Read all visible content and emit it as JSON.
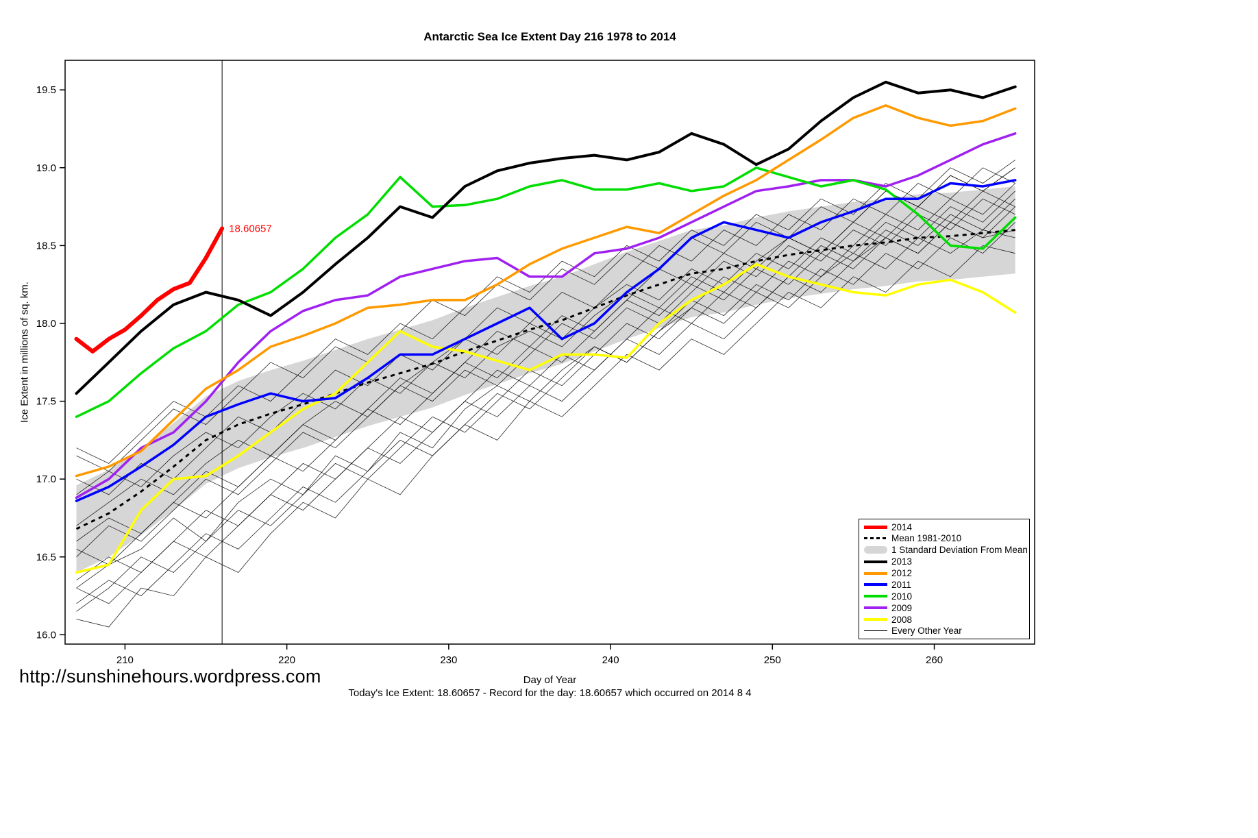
{
  "footer": {
    "url": "http://sunshinehours.wordpress.com",
    "note": "Today's Ice Extent: 18.60657  - Record for the day: 18.60657 which occurred on 2014 8 4"
  },
  "legend": {
    "items": [
      {
        "label": "2014",
        "swatch": "line",
        "color": "#ff0000",
        "width": 5
      },
      {
        "label": "Mean 1981-2010",
        "swatch": "dashed",
        "color": "#000000"
      },
      {
        "label": "1 Standard Deviation From Mean",
        "swatch": "band",
        "color": "#d6d6d6"
      },
      {
        "label": "2013",
        "swatch": "line",
        "color": "#000000",
        "width": 4
      },
      {
        "label": "2012",
        "swatch": "line",
        "color": "#ff9900",
        "width": 4
      },
      {
        "label": "2011",
        "swatch": "line",
        "color": "#0000ff",
        "width": 4
      },
      {
        "label": "2010",
        "swatch": "line",
        "color": "#00dd00",
        "width": 4
      },
      {
        "label": "2009",
        "swatch": "line",
        "color": "#a020f0",
        "width": 4
      },
      {
        "label": "2008",
        "swatch": "line",
        "color": "#ffff00",
        "width": 4
      },
      {
        "label": "Every Other Year",
        "swatch": "line",
        "color": "#000000",
        "width": 1
      }
    ]
  },
  "chart_data": {
    "type": "line",
    "title": "Antarctic Sea Ice Extent Day 216 1978 to 2014",
    "xlabel": "Day of Year",
    "ylabel": "Ice Extent in millions of sq. km.",
    "xlim": [
      206.3,
      266.2
    ],
    "ylim": [
      15.94,
      19.69
    ],
    "xticks": [
      210,
      220,
      230,
      240,
      250,
      260
    ],
    "yticks": [
      16.0,
      16.5,
      17.0,
      17.5,
      18.0,
      18.5,
      19.0,
      19.5
    ],
    "vline_x": 216,
    "annotation": {
      "label": "18.60657",
      "x": 216,
      "y": 18.61,
      "color": "#ff0000"
    },
    "x": [
      207,
      209,
      211,
      213,
      215,
      217,
      219,
      221,
      223,
      225,
      227,
      229,
      231,
      233,
      235,
      237,
      239,
      241,
      243,
      245,
      247,
      249,
      251,
      253,
      255,
      257,
      259,
      261,
      263,
      265
    ],
    "band": {
      "name": "1 Standard Deviation From Mean",
      "color": "#d6d6d6",
      "upper": [
        16.96,
        17.06,
        17.2,
        17.36,
        17.53,
        17.63,
        17.7,
        17.76,
        17.83,
        17.9,
        17.96,
        18.02,
        18.1,
        18.17,
        18.24,
        18.3,
        18.38,
        18.46,
        18.53,
        18.6,
        18.63,
        18.68,
        18.72,
        18.75,
        18.78,
        18.8,
        18.83,
        18.84,
        18.86,
        18.88
      ],
      "lower": [
        16.4,
        16.5,
        16.64,
        16.8,
        16.97,
        17.07,
        17.14,
        17.2,
        17.27,
        17.34,
        17.4,
        17.46,
        17.54,
        17.61,
        17.68,
        17.74,
        17.82,
        17.9,
        17.97,
        18.04,
        18.07,
        18.12,
        18.16,
        18.19,
        18.22,
        18.24,
        18.27,
        18.28,
        18.3,
        18.32
      ]
    },
    "mean": {
      "name": "Mean 1981-2010",
      "color": "#000000",
      "values": [
        16.68,
        16.78,
        16.92,
        17.08,
        17.25,
        17.35,
        17.42,
        17.48,
        17.55,
        17.62,
        17.68,
        17.74,
        17.82,
        17.89,
        17.96,
        18.02,
        18.1,
        18.18,
        18.25,
        18.32,
        18.35,
        18.4,
        18.44,
        18.47,
        18.5,
        18.52,
        18.55,
        18.56,
        18.58,
        18.6
      ]
    },
    "series": [
      {
        "name": "2008",
        "color": "#ffff00",
        "width": 3.5,
        "values": [
          16.4,
          16.45,
          16.8,
          17.0,
          17.02,
          17.15,
          17.3,
          17.45,
          17.55,
          17.75,
          17.95,
          17.85,
          17.82,
          17.76,
          17.7,
          17.8,
          17.8,
          17.78,
          18.0,
          18.15,
          18.25,
          18.38,
          18.3,
          18.25,
          18.2,
          18.18,
          18.25,
          18.28,
          18.2,
          18.07
        ]
      },
      {
        "name": "2009",
        "color": "#a020f0",
        "width": 3.5,
        "values": [
          16.88,
          17.0,
          17.2,
          17.3,
          17.5,
          17.75,
          17.95,
          18.08,
          18.15,
          18.18,
          18.3,
          18.35,
          18.4,
          18.42,
          18.3,
          18.3,
          18.45,
          18.48,
          18.55,
          18.65,
          18.75,
          18.85,
          18.88,
          18.92,
          18.92,
          18.88,
          18.95,
          19.05,
          19.15,
          19.22
        ]
      },
      {
        "name": "2010",
        "color": "#00dd00",
        "width": 3.5,
        "values": [
          17.4,
          17.5,
          17.68,
          17.84,
          17.95,
          18.12,
          18.2,
          18.35,
          18.55,
          18.7,
          18.94,
          18.75,
          18.76,
          18.8,
          18.88,
          18.92,
          18.86,
          18.86,
          18.9,
          18.85,
          18.88,
          19.0,
          18.94,
          18.88,
          18.92,
          18.86,
          18.7,
          18.5,
          18.48,
          18.68
        ]
      },
      {
        "name": "2011",
        "color": "#0000ff",
        "width": 3.5,
        "values": [
          16.86,
          16.95,
          17.08,
          17.22,
          17.4,
          17.48,
          17.55,
          17.5,
          17.52,
          17.65,
          17.8,
          17.8,
          17.9,
          18.0,
          18.1,
          17.9,
          18.0,
          18.2,
          18.35,
          18.55,
          18.65,
          18.6,
          18.55,
          18.65,
          18.72,
          18.8,
          18.8,
          18.9,
          18.88,
          18.92
        ]
      },
      {
        "name": "2012",
        "color": "#ff9900",
        "width": 3.5,
        "values": [
          17.02,
          17.08,
          17.18,
          17.38,
          17.58,
          17.7,
          17.85,
          17.92,
          18.0,
          18.1,
          18.12,
          18.15,
          18.15,
          18.25,
          18.38,
          18.48,
          18.55,
          18.62,
          18.58,
          18.7,
          18.82,
          18.92,
          19.05,
          19.18,
          19.32,
          19.4,
          19.32,
          19.27,
          19.3,
          19.38
        ]
      },
      {
        "name": "2013",
        "color": "#000000",
        "width": 4,
        "values": [
          17.55,
          17.75,
          17.95,
          18.12,
          18.2,
          18.15,
          18.05,
          18.2,
          18.38,
          18.55,
          18.75,
          18.68,
          18.88,
          18.98,
          19.03,
          19.06,
          19.08,
          19.05,
          19.1,
          19.22,
          19.15,
          19.02,
          19.12,
          19.3,
          19.45,
          19.55,
          19.48,
          19.5,
          19.45,
          19.52
        ]
      },
      {
        "name": "2014",
        "color": "#ff0000",
        "width": 6,
        "x": [
          207,
          208,
          209,
          210,
          211,
          212,
          213,
          214,
          215,
          216
        ],
        "values": [
          17.9,
          17.82,
          17.9,
          17.96,
          18.05,
          18.15,
          18.22,
          18.26,
          18.42,
          18.61
        ]
      }
    ],
    "other_years": {
      "name": "Every Other Year",
      "color": "#000000",
      "lines": [
        [
          16.3,
          16.45,
          16.55,
          16.75,
          16.6,
          16.85,
          17.0,
          16.9,
          17.15,
          17.05,
          17.3,
          17.2,
          17.45,
          17.6,
          17.5,
          17.7,
          17.85,
          17.75,
          17.95,
          18.1,
          18.0,
          18.2,
          18.1,
          18.3,
          18.45,
          18.35,
          18.55,
          18.45,
          18.6,
          18.55
        ],
        [
          16.1,
          16.05,
          16.3,
          16.25,
          16.5,
          16.4,
          16.65,
          16.85,
          16.75,
          17.0,
          16.9,
          17.15,
          17.35,
          17.25,
          17.5,
          17.4,
          17.6,
          17.8,
          17.7,
          17.9,
          17.8,
          18.0,
          18.2,
          18.1,
          18.3,
          18.2,
          18.4,
          18.3,
          18.5,
          18.45
        ],
        [
          17.15,
          17.05,
          17.25,
          17.45,
          17.35,
          17.55,
          17.75,
          17.65,
          17.85,
          17.75,
          17.95,
          18.15,
          18.05,
          18.25,
          18.15,
          18.35,
          18.25,
          18.45,
          18.35,
          18.55,
          18.45,
          18.65,
          18.55,
          18.75,
          18.65,
          18.85,
          18.75,
          18.95,
          18.85,
          19.0
        ],
        [
          16.5,
          16.7,
          16.6,
          16.8,
          17.0,
          16.9,
          17.1,
          17.3,
          17.2,
          17.4,
          17.6,
          17.5,
          17.7,
          17.6,
          17.8,
          18.0,
          17.9,
          18.1,
          18.0,
          18.2,
          18.4,
          18.3,
          18.5,
          18.4,
          18.6,
          18.5,
          18.7,
          18.6,
          18.8,
          18.7
        ],
        [
          16.7,
          16.85,
          17.0,
          16.9,
          17.1,
          17.25,
          17.15,
          17.35,
          17.5,
          17.4,
          17.6,
          17.75,
          17.65,
          17.85,
          17.95,
          17.85,
          18.05,
          18.2,
          18.1,
          18.3,
          18.2,
          18.4,
          18.55,
          18.45,
          18.65,
          18.55,
          18.75,
          18.65,
          18.85,
          18.75
        ],
        [
          16.3,
          16.2,
          16.4,
          16.6,
          16.5,
          16.7,
          16.9,
          16.8,
          17.0,
          17.2,
          17.1,
          17.3,
          17.5,
          17.4,
          17.6,
          17.5,
          17.7,
          17.9,
          17.8,
          18.0,
          17.9,
          18.1,
          18.3,
          18.2,
          18.4,
          18.55,
          18.45,
          18.65,
          18.55,
          18.75
        ],
        [
          17.2,
          17.1,
          17.3,
          17.5,
          17.4,
          17.6,
          17.5,
          17.7,
          17.9,
          17.8,
          18.0,
          17.9,
          18.1,
          18.3,
          18.2,
          18.4,
          18.3,
          18.5,
          18.4,
          18.6,
          18.5,
          18.7,
          18.6,
          18.8,
          18.7,
          18.9,
          18.8,
          19.0,
          18.9,
          19.05
        ],
        [
          16.55,
          16.45,
          16.65,
          16.85,
          16.75,
          16.95,
          17.15,
          17.05,
          17.25,
          17.45,
          17.35,
          17.55,
          17.75,
          17.65,
          17.85,
          17.75,
          17.95,
          18.15,
          18.05,
          18.25,
          18.15,
          18.35,
          18.25,
          18.45,
          18.35,
          18.55,
          18.45,
          18.65,
          18.55,
          18.6
        ],
        [
          16.9,
          17.05,
          16.95,
          17.15,
          17.3,
          17.2,
          17.4,
          17.55,
          17.45,
          17.65,
          17.55,
          17.75,
          17.9,
          17.8,
          18.0,
          17.9,
          18.1,
          18.25,
          18.15,
          18.35,
          18.25,
          18.45,
          18.35,
          18.55,
          18.45,
          18.65,
          18.55,
          18.75,
          18.65,
          18.85
        ],
        [
          16.2,
          16.35,
          16.25,
          16.45,
          16.65,
          16.55,
          16.75,
          16.95,
          16.85,
          17.05,
          17.25,
          17.15,
          17.35,
          17.55,
          17.45,
          17.65,
          17.85,
          17.75,
          17.95,
          18.15,
          18.05,
          18.25,
          18.15,
          18.35,
          18.25,
          18.45,
          18.35,
          18.55,
          18.45,
          18.65
        ],
        [
          17.0,
          16.9,
          17.1,
          17.0,
          17.2,
          17.4,
          17.3,
          17.5,
          17.7,
          17.6,
          17.8,
          17.7,
          17.9,
          18.1,
          18.0,
          18.2,
          18.1,
          18.3,
          18.5,
          18.4,
          18.6,
          18.5,
          18.7,
          18.6,
          18.8,
          18.7,
          18.9,
          18.8,
          19.0,
          18.9
        ],
        [
          16.6,
          16.75,
          16.65,
          16.85,
          17.05,
          16.95,
          17.15,
          17.35,
          17.25,
          17.45,
          17.65,
          17.55,
          17.75,
          17.95,
          17.85,
          18.05,
          17.95,
          18.15,
          18.35,
          18.25,
          18.45,
          18.35,
          18.55,
          18.45,
          18.65,
          18.85,
          18.75,
          18.95,
          18.85,
          19.0
        ],
        [
          16.35,
          16.5,
          16.4,
          16.6,
          16.8,
          16.7,
          16.9,
          17.1,
          17.0,
          17.2,
          17.4,
          17.3,
          17.5,
          17.7,
          17.6,
          17.8,
          17.7,
          17.9,
          18.1,
          18.0,
          18.2,
          18.1,
          18.3,
          18.5,
          18.4,
          18.6,
          18.5,
          18.7,
          18.6,
          18.8
        ],
        [
          16.15,
          16.3,
          16.5,
          16.4,
          16.6,
          16.8,
          16.7,
          16.9,
          17.1,
          17.0,
          17.2,
          17.4,
          17.3,
          17.5,
          17.7,
          17.6,
          17.8,
          18.0,
          17.9,
          18.1,
          18.3,
          18.2,
          18.4,
          18.3,
          18.5,
          18.7,
          18.6,
          18.8,
          18.7,
          18.9
        ]
      ]
    }
  }
}
